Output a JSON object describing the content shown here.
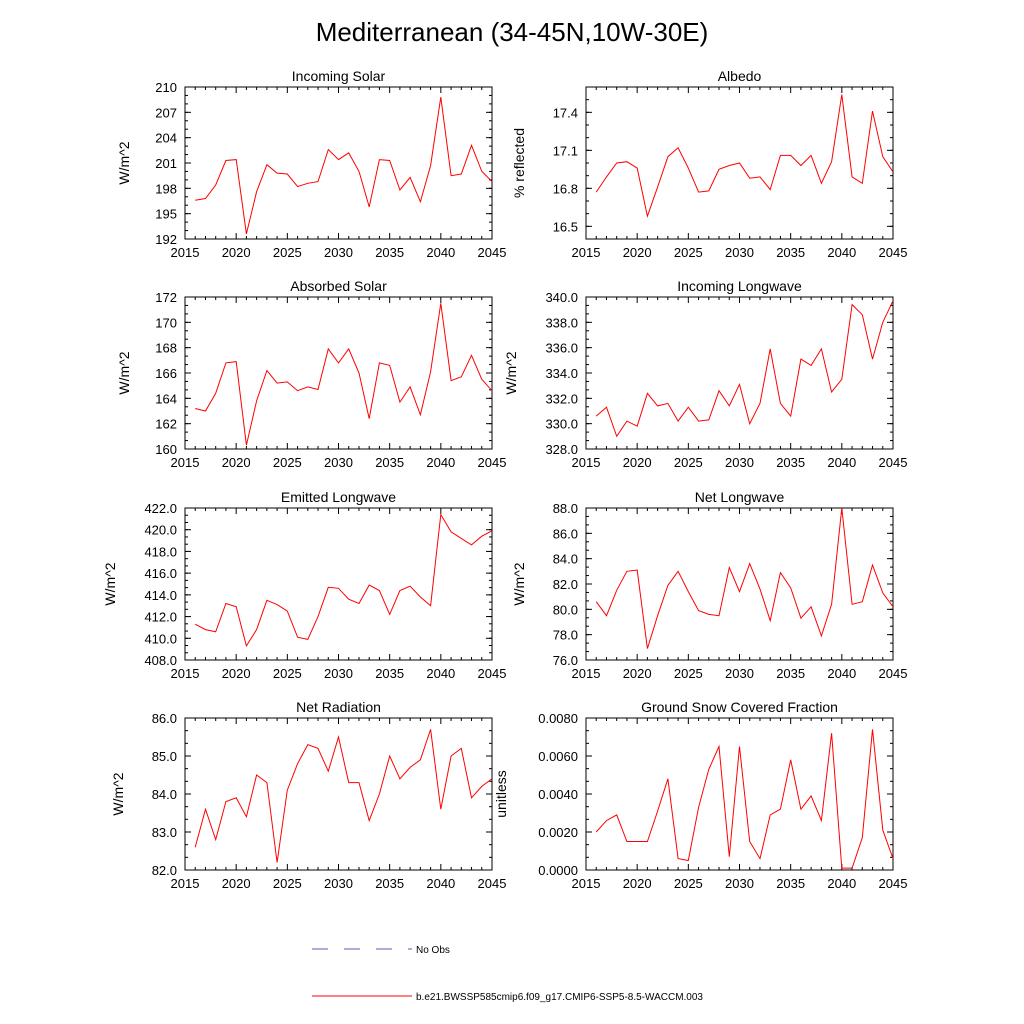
{
  "figure": {
    "title": "Mediterranean (34-45N,10W-30E)"
  },
  "legend": {
    "no_obs_label": "No Obs",
    "no_obs_color": "#5a5ab4",
    "model_label": "b.e21.BWSSP585cmip6.f09_g17.CMIP6-SSP5-8.5-WACCM.003",
    "model_color": "#ff0000"
  },
  "chart_data": [
    {
      "type": "line",
      "title": "Incoming Solar",
      "xlabel": "",
      "ylabel": "W/m^2",
      "xlim": [
        2015,
        2045
      ],
      "ylim": [
        192,
        210
      ],
      "xticks": [
        2015,
        2020,
        2025,
        2030,
        2035,
        2040,
        2045
      ],
      "yticks": [
        192,
        195,
        198,
        201,
        204,
        207,
        210
      ],
      "ytick_labels": [
        "192",
        "195",
        "198",
        "201",
        "204",
        "207",
        "210"
      ],
      "series": [
        {
          "name": "b.e21.BWSSP585cmip6.f09_g17.CMIP6-SSP5-8.5-WACCM.003",
          "x": [
            2016,
            2017,
            2018,
            2019,
            2020,
            2021,
            2022,
            2023,
            2024,
            2025,
            2026,
            2027,
            2028,
            2029,
            2030,
            2031,
            2032,
            2033,
            2034,
            2035,
            2036,
            2037,
            2038,
            2039,
            2040,
            2041,
            2042,
            2043,
            2044,
            2045
          ],
          "values": [
            196.6,
            196.8,
            198.4,
            201.3,
            201.4,
            192.6,
            197.6,
            200.8,
            199.8,
            199.7,
            198.2,
            198.6,
            198.8,
            202.6,
            201.4,
            202.2,
            200.0,
            195.8,
            201.4,
            201.3,
            197.8,
            199.3,
            196.4,
            200.7,
            208.8,
            199.5,
            199.7,
            203.1,
            200.0,
            198.8
          ]
        }
      ]
    },
    {
      "type": "line",
      "title": "Albedo",
      "xlabel": "",
      "ylabel": "% reflected",
      "xlim": [
        2015,
        2045
      ],
      "ylim": [
        16.4,
        17.6
      ],
      "xticks": [
        2015,
        2020,
        2025,
        2030,
        2035,
        2040,
        2045
      ],
      "yticks": [
        16.5,
        16.8,
        17.1,
        17.4
      ],
      "ytick_labels": [
        "16.5",
        "16.8",
        "17.1",
        "17.4"
      ],
      "series": [
        {
          "name": "b.e21.BWSSP585cmip6.f09_g17.CMIP6-SSP5-8.5-WACCM.003",
          "x": [
            2016,
            2017,
            2018,
            2019,
            2020,
            2021,
            2022,
            2023,
            2024,
            2025,
            2026,
            2027,
            2028,
            2029,
            2030,
            2031,
            2032,
            2033,
            2034,
            2035,
            2036,
            2037,
            2038,
            2039,
            2040,
            2041,
            2042,
            2043,
            2044,
            2045
          ],
          "values": [
            16.77,
            16.89,
            17.0,
            17.01,
            16.96,
            16.58,
            16.81,
            17.05,
            17.12,
            16.96,
            16.77,
            16.78,
            16.95,
            16.98,
            17.0,
            16.88,
            16.89,
            16.79,
            17.06,
            17.06,
            16.98,
            17.06,
            16.84,
            17.01,
            17.54,
            16.89,
            16.84,
            17.41,
            17.05,
            16.93
          ]
        }
      ]
    },
    {
      "type": "line",
      "title": "Absorbed Solar",
      "xlabel": "",
      "ylabel": "W/m^2",
      "xlim": [
        2015,
        2045
      ],
      "ylim": [
        160,
        172
      ],
      "xticks": [
        2015,
        2020,
        2025,
        2030,
        2035,
        2040,
        2045
      ],
      "yticks": [
        160,
        162,
        164,
        166,
        168,
        170,
        172
      ],
      "ytick_labels": [
        "160",
        "162",
        "164",
        "166",
        "168",
        "170",
        "172"
      ],
      "series": [
        {
          "name": "b.e21.BWSSP585cmip6.f09_g17.CMIP6-SSP5-8.5-WACCM.003",
          "x": [
            2016,
            2017,
            2018,
            2019,
            2020,
            2021,
            2022,
            2023,
            2024,
            2025,
            2026,
            2027,
            2028,
            2029,
            2030,
            2031,
            2032,
            2033,
            2034,
            2035,
            2036,
            2037,
            2038,
            2039,
            2040,
            2041,
            2042,
            2043,
            2044,
            2045
          ],
          "values": [
            163.2,
            163.0,
            164.4,
            166.8,
            166.9,
            160.3,
            163.8,
            166.2,
            165.2,
            165.3,
            164.6,
            164.9,
            164.7,
            167.9,
            166.8,
            167.9,
            166.0,
            162.4,
            166.8,
            166.6,
            163.7,
            164.9,
            162.7,
            166.1,
            171.5,
            165.4,
            165.7,
            167.4,
            165.5,
            164.6
          ]
        }
      ]
    },
    {
      "type": "line",
      "title": "Incoming Longwave",
      "xlabel": "",
      "ylabel": "W/m^2",
      "xlim": [
        2015,
        2045
      ],
      "ylim": [
        328,
        340
      ],
      "xticks": [
        2015,
        2020,
        2025,
        2030,
        2035,
        2040,
        2045
      ],
      "yticks": [
        328,
        330,
        332,
        334,
        336,
        338,
        340
      ],
      "ytick_labels": [
        "328.0",
        "330.0",
        "332.0",
        "334.0",
        "336.0",
        "338.0",
        "340.0"
      ],
      "series": [
        {
          "name": "b.e21.BWSSP585cmip6.f09_g17.CMIP6-SSP5-8.5-WACCM.003",
          "x": [
            2016,
            2017,
            2018,
            2019,
            2020,
            2021,
            2022,
            2023,
            2024,
            2025,
            2026,
            2027,
            2028,
            2029,
            2030,
            2031,
            2032,
            2033,
            2034,
            2035,
            2036,
            2037,
            2038,
            2039,
            2040,
            2041,
            2042,
            2043,
            2044,
            2045
          ],
          "values": [
            330.6,
            331.3,
            329.0,
            330.2,
            329.8,
            332.4,
            331.4,
            331.6,
            330.2,
            331.3,
            330.2,
            330.3,
            332.6,
            331.4,
            333.1,
            330.0,
            331.6,
            335.9,
            331.6,
            330.6,
            335.1,
            334.6,
            335.9,
            332.5,
            333.5,
            339.4,
            338.6,
            335.1,
            338.0,
            339.7
          ]
        }
      ]
    },
    {
      "type": "line",
      "title": "Emitted Longwave",
      "xlabel": "",
      "ylabel": "W/m^2",
      "xlim": [
        2015,
        2045
      ],
      "ylim": [
        408,
        422
      ],
      "xticks": [
        2015,
        2020,
        2025,
        2030,
        2035,
        2040,
        2045
      ],
      "yticks": [
        408,
        410,
        412,
        414,
        416,
        418,
        420,
        422
      ],
      "ytick_labels": [
        "408.0",
        "410.0",
        "412.0",
        "414.0",
        "416.0",
        "418.0",
        "420.0",
        "422.0"
      ],
      "series": [
        {
          "name": "b.e21.BWSSP585cmip6.f09_g17.CMIP6-SSP5-8.5-WACCM.003",
          "x": [
            2016,
            2017,
            2018,
            2019,
            2020,
            2021,
            2022,
            2023,
            2024,
            2025,
            2026,
            2027,
            2028,
            2029,
            2030,
            2031,
            2032,
            2033,
            2034,
            2035,
            2036,
            2037,
            2038,
            2039,
            2040,
            2041,
            2042,
            2043,
            2044,
            2045
          ],
          "values": [
            411.3,
            410.8,
            410.6,
            413.2,
            412.9,
            409.3,
            410.8,
            413.5,
            413.1,
            412.5,
            410.1,
            409.9,
            412.0,
            414.7,
            414.6,
            413.6,
            413.2,
            414.9,
            414.4,
            412.2,
            414.4,
            414.8,
            413.8,
            413.0,
            421.4,
            419.8,
            419.2,
            418.6,
            419.4,
            419.9
          ]
        }
      ]
    },
    {
      "type": "line",
      "title": "Net Longwave",
      "xlabel": "",
      "ylabel": "W/m^2",
      "xlim": [
        2015,
        2045
      ],
      "ylim": [
        76,
        88
      ],
      "xticks": [
        2015,
        2020,
        2025,
        2030,
        2035,
        2040,
        2045
      ],
      "yticks": [
        76,
        78,
        80,
        82,
        84,
        86,
        88
      ],
      "ytick_labels": [
        "76.0",
        "78.0",
        "80.0",
        "82.0",
        "84.0",
        "86.0",
        "88.0"
      ],
      "series": [
        {
          "name": "b.e21.BWSSP585cmip6.f09_g17.CMIP6-SSP5-8.5-WACCM.003",
          "x": [
            2016,
            2017,
            2018,
            2019,
            2020,
            2021,
            2022,
            2023,
            2024,
            2025,
            2026,
            2027,
            2028,
            2029,
            2030,
            2031,
            2032,
            2033,
            2034,
            2035,
            2036,
            2037,
            2038,
            2039,
            2040,
            2041,
            2042,
            2043,
            2044,
            2045
          ],
          "values": [
            80.6,
            79.5,
            81.5,
            83.0,
            83.1,
            76.9,
            79.5,
            81.9,
            83.0,
            81.4,
            79.9,
            79.6,
            79.5,
            83.3,
            81.4,
            83.6,
            81.6,
            79.1,
            82.9,
            81.7,
            79.3,
            80.2,
            77.9,
            80.4,
            88.0,
            80.4,
            80.6,
            83.5,
            81.3,
            80.2
          ]
        }
      ]
    },
    {
      "type": "line",
      "title": "Net Radiation",
      "xlabel": "",
      "ylabel": "W/m^2",
      "xlim": [
        2015,
        2045
      ],
      "ylim": [
        82,
        86
      ],
      "xticks": [
        2015,
        2020,
        2025,
        2030,
        2035,
        2040,
        2045
      ],
      "yticks": [
        82,
        83,
        84,
        85,
        86
      ],
      "ytick_labels": [
        "82.0",
        "83.0",
        "84.0",
        "85.0",
        "86.0"
      ],
      "series": [
        {
          "name": "b.e21.BWSSP585cmip6.f09_g17.CMIP6-SSP5-8.5-WACCM.003",
          "x": [
            2016,
            2017,
            2018,
            2019,
            2020,
            2021,
            2022,
            2023,
            2024,
            2025,
            2026,
            2027,
            2028,
            2029,
            2030,
            2031,
            2032,
            2033,
            2034,
            2035,
            2036,
            2037,
            2038,
            2039,
            2040,
            2041,
            2042,
            2043,
            2044,
            2045
          ],
          "values": [
            82.6,
            83.6,
            82.8,
            83.8,
            83.9,
            83.4,
            84.5,
            84.3,
            82.2,
            84.1,
            84.8,
            85.3,
            85.2,
            84.6,
            85.5,
            84.3,
            84.3,
            83.3,
            84.0,
            85.0,
            84.4,
            84.7,
            84.9,
            85.7,
            83.6,
            85.0,
            85.2,
            83.9,
            84.2,
            84.4
          ]
        }
      ]
    },
    {
      "type": "line",
      "title": "Ground Snow Covered Fraction",
      "xlabel": "",
      "ylabel": "unitless",
      "xlim": [
        2015,
        2045
      ],
      "ylim": [
        0,
        0.008
      ],
      "xticks": [
        2015,
        2020,
        2025,
        2030,
        2035,
        2040,
        2045
      ],
      "yticks": [
        0,
        0.002,
        0.004,
        0.006,
        0.008
      ],
      "ytick_labels": [
        "0.0000",
        "0.0020",
        "0.0040",
        "0.0060",
        "0.0080"
      ],
      "series": [
        {
          "name": "b.e21.BWSSP585cmip6.f09_g17.CMIP6-SSP5-8.5-WACCM.003",
          "x": [
            2016,
            2017,
            2018,
            2019,
            2020,
            2021,
            2022,
            2023,
            2024,
            2025,
            2026,
            2027,
            2028,
            2029,
            2030,
            2031,
            2032,
            2033,
            2034,
            2035,
            2036,
            2037,
            2038,
            2039,
            2040,
            2041,
            2042,
            2043,
            2044,
            2045
          ],
          "values": [
            0.002,
            0.0026,
            0.0029,
            0.0015,
            0.0015,
            0.0015,
            0.0031,
            0.0048,
            0.0006,
            0.0005,
            0.0033,
            0.0053,
            0.0065,
            0.0007,
            0.0065,
            0.0015,
            0.0006,
            0.0029,
            0.0032,
            0.0058,
            0.0032,
            0.0039,
            0.0026,
            0.0072,
            0.0001,
            0.0001,
            0.0017,
            0.0074,
            0.0021,
            0.0006
          ]
        }
      ]
    }
  ]
}
